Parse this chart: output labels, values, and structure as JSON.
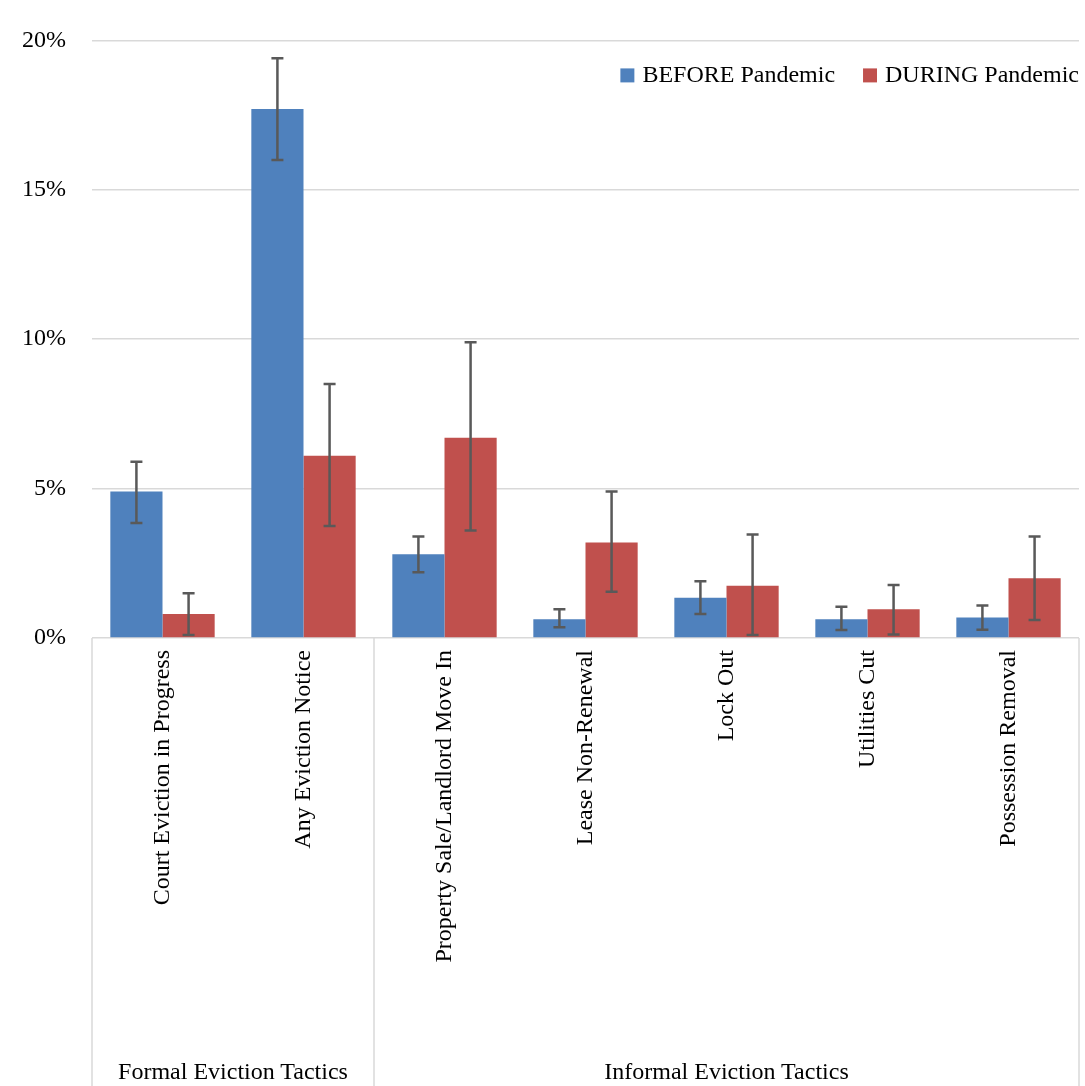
{
  "chart_data": {
    "type": "bar",
    "categories": [
      "Court Eviction in Progress",
      "Any Eviction Notice",
      "Property Sale/Landlord Move In",
      "Lease Non-Renewal",
      "Lock Out",
      "Utilities Cut",
      "Possession Removal"
    ],
    "series": [
      {
        "name": "BEFORE Pandemic",
        "color": "#4f81bd",
        "values": [
          4.9,
          17.7,
          2.8,
          0.63,
          1.35,
          0.63,
          0.69
        ],
        "errors": [
          [
            3.85,
            5.9
          ],
          [
            16.0,
            19.4
          ],
          [
            2.2,
            3.4
          ],
          [
            0.36,
            0.96
          ],
          [
            0.8,
            1.9
          ],
          [
            0.27,
            1.05
          ],
          [
            0.28,
            1.09
          ]
        ]
      },
      {
        "name": "DURING Pandemic",
        "color": "#c0504d",
        "values": [
          0.8,
          6.1,
          6.7,
          3.2,
          1.75,
          0.96,
          2.0
        ],
        "errors": [
          [
            0.1,
            1.5
          ],
          [
            3.75,
            8.5
          ],
          [
            3.6,
            9.9
          ],
          [
            1.55,
            4.9
          ],
          [
            0.1,
            3.46
          ],
          [
            0.12,
            1.77
          ],
          [
            0.6,
            3.4
          ]
        ]
      }
    ],
    "ylim": [
      0,
      20
    ],
    "yticks": [
      {
        "value": 0,
        "label": "0%"
      },
      {
        "value": 5,
        "label": "5%"
      },
      {
        "value": 10,
        "label": "10%"
      },
      {
        "value": 15,
        "label": "15%"
      },
      {
        "value": 20,
        "label": "20%"
      }
    ],
    "grid": "y",
    "legend": "top right",
    "annotations": [
      "Formal Eviction Tactics",
      "Informal Eviction Tactics"
    ]
  }
}
